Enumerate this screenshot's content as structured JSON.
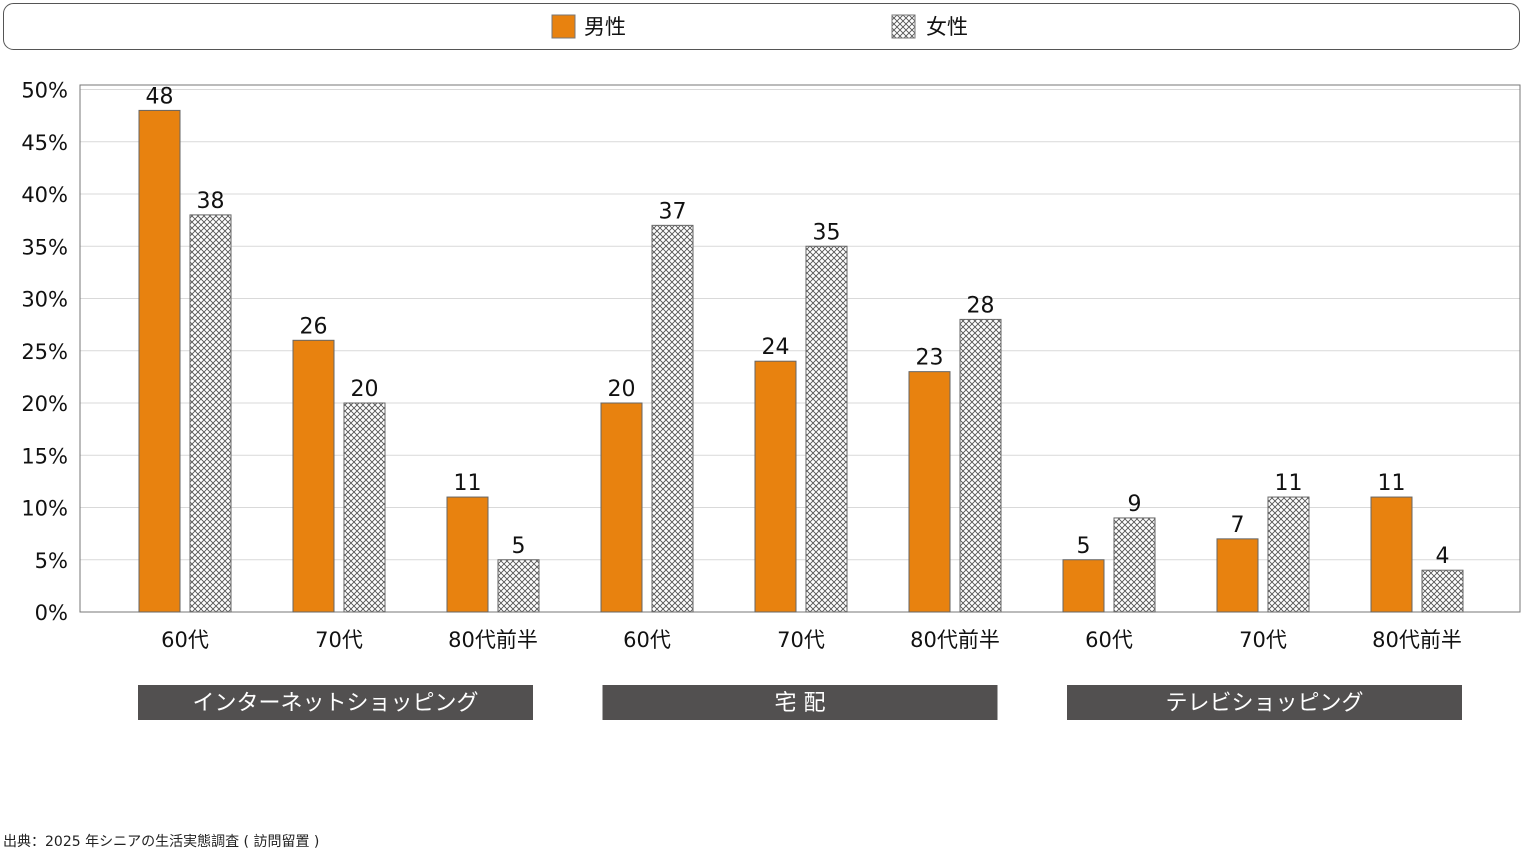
{
  "chart_data": {
    "type": "bar",
    "legend": {
      "position": "top",
      "entries": [
        "男性",
        "女性"
      ]
    },
    "colors": {
      "男性": "#E8820F",
      "女性_hatch": "#666666",
      "group_box": "#525050",
      "grid": "#D9D9D9"
    },
    "ylim": [
      0,
      50
    ],
    "yticks": [
      "0%",
      "5%",
      "10%",
      "15%",
      "20%",
      "25%",
      "30%",
      "35%",
      "40%",
      "45%",
      "50%"
    ],
    "categories": [
      "60代",
      "70代",
      "80代前半",
      "60代",
      "70代",
      "80代前半",
      "60代",
      "70代",
      "80代前半"
    ],
    "groups": [
      "インターネットショッピング",
      "宅 配",
      "テレビショッピング"
    ],
    "series": [
      {
        "name": "男性",
        "values": [
          48,
          26,
          11,
          20,
          24,
          23,
          5,
          7,
          11
        ]
      },
      {
        "name": "女性",
        "values": [
          38,
          20,
          5,
          37,
          35,
          28,
          9,
          11,
          4
        ]
      }
    ]
  },
  "footer": "出典：2025 年シニアの生活実態調査 ( 訪問留置 )"
}
